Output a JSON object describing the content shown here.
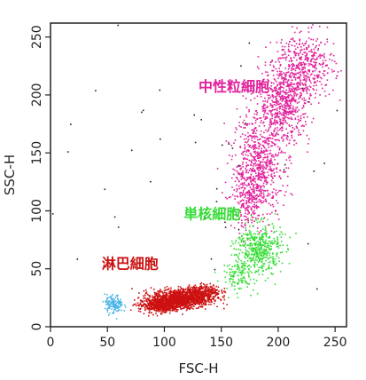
{
  "chart_data": {
    "type": "scatter",
    "xlabel": "FSC-H",
    "ylabel": "SSC-H",
    "xlim": [
      0,
      260
    ],
    "ylim": [
      0,
      262
    ],
    "x_ticks": [
      0,
      50,
      100,
      150,
      200,
      250
    ],
    "y_ticks": [
      0,
      50,
      100,
      150,
      200,
      250
    ],
    "grid": false,
    "populations": [
      {
        "name": "中性粒細胞",
        "color": "#e0209a",
        "label_at": [
          130,
          203
        ],
        "label_color": "#e0209a",
        "clusters": [
          {
            "cx": 182,
            "cy": 140,
            "sx": 11,
            "sy": 22,
            "n": 700
          },
          {
            "cx": 205,
            "cy": 195,
            "sx": 11,
            "sy": 18,
            "n": 650
          },
          {
            "cx": 225,
            "cy": 225,
            "sx": 12,
            "sy": 14,
            "n": 380
          },
          {
            "cx": 172,
            "cy": 110,
            "sx": 8,
            "sy": 12,
            "n": 180
          }
        ]
      },
      {
        "name": "単核細胞",
        "color": "#33dd33",
        "label_at": [
          117,
          93
        ],
        "label_color": "#33dd33",
        "clusters": [
          {
            "cx": 182,
            "cy": 68,
            "sx": 10,
            "sy": 11,
            "n": 450
          },
          {
            "cx": 165,
            "cy": 45,
            "sx": 7,
            "sy": 7,
            "n": 120
          }
        ]
      },
      {
        "name": "淋巴細胞",
        "color": "#cc1010",
        "label_at": [
          45,
          50
        ],
        "label_color": "#cc1010",
        "clusters": [
          {
            "cx": 115,
            "cy": 25,
            "sx": 13,
            "sy": 4,
            "n": 1100
          },
          {
            "cx": 95,
            "cy": 19,
            "sx": 9,
            "sy": 3,
            "n": 500
          },
          {
            "cx": 135,
            "cy": 31,
            "sx": 7,
            "sy": 3,
            "n": 250
          }
        ]
      },
      {
        "name": "",
        "color": "#4ab4e8",
        "clusters": [
          {
            "cx": 55,
            "cy": 20,
            "sx": 4,
            "sy": 4,
            "n": 130
          }
        ]
      },
      {
        "name": "",
        "color": "#222222",
        "clusters": [
          {
            "cx": 130,
            "cy": 130,
            "sx": 70,
            "sy": 70,
            "n": 45
          }
        ]
      }
    ]
  }
}
